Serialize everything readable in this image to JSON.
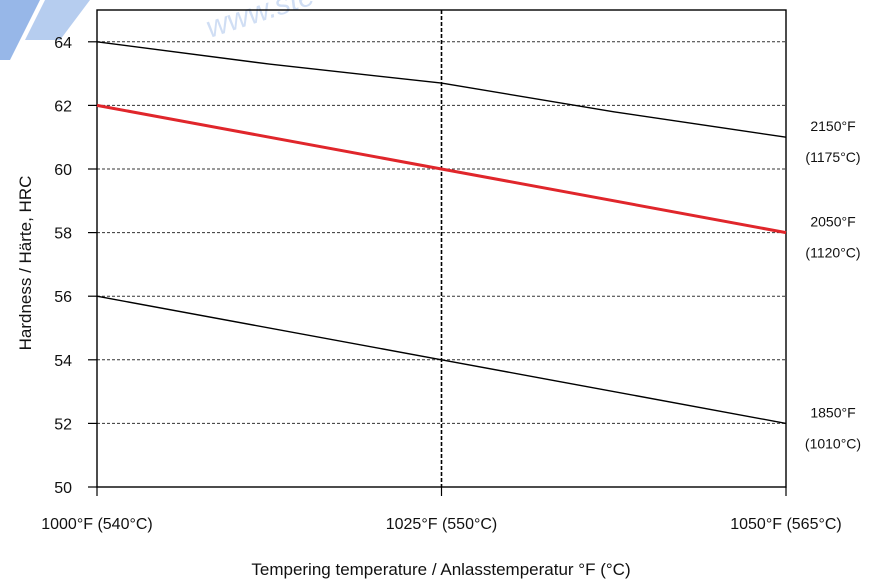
{
  "chart_data": {
    "type": "line",
    "title": "",
    "xlabel": "Tempering temperature / Anlasstemperatur °F (°C)",
    "ylabel": "Hardness / Härte, HRC",
    "x": [
      1000,
      1025,
      1050
    ],
    "x_tick_labels": [
      "1000°F (540°C)",
      "1025°F (550°C)",
      "1050°F (565°C)"
    ],
    "xlim": [
      1000,
      1050
    ],
    "ylim": [
      50,
      65
    ],
    "y_ticks": [
      50,
      52,
      54,
      56,
      58,
      60,
      62,
      64
    ],
    "grid": "horizontal dashed, vertical dashed at 1025",
    "series": [
      {
        "label_lines": [
          "2150°F",
          "(1175°C)"
        ],
        "color": "#000000",
        "points": [
          [
            1000,
            64.0
          ],
          [
            1012.5,
            63.3
          ],
          [
            1025,
            62.7
          ],
          [
            1037.5,
            61.8
          ],
          [
            1050,
            61.0
          ]
        ]
      },
      {
        "label_lines": [
          "2050°F",
          "(1120°C)"
        ],
        "color": "#e0262b",
        "points": [
          [
            1000,
            62.0
          ],
          [
            1025,
            60.0
          ],
          [
            1050,
            58.0
          ]
        ]
      },
      {
        "label_lines": [
          "1850°F",
          "(1010°C)"
        ],
        "color": "#000000",
        "points": [
          [
            1000,
            56.0
          ],
          [
            1025,
            54.0
          ],
          [
            1050,
            52.0
          ]
        ]
      }
    ]
  },
  "watermark": {
    "text": "www.ste"
  }
}
